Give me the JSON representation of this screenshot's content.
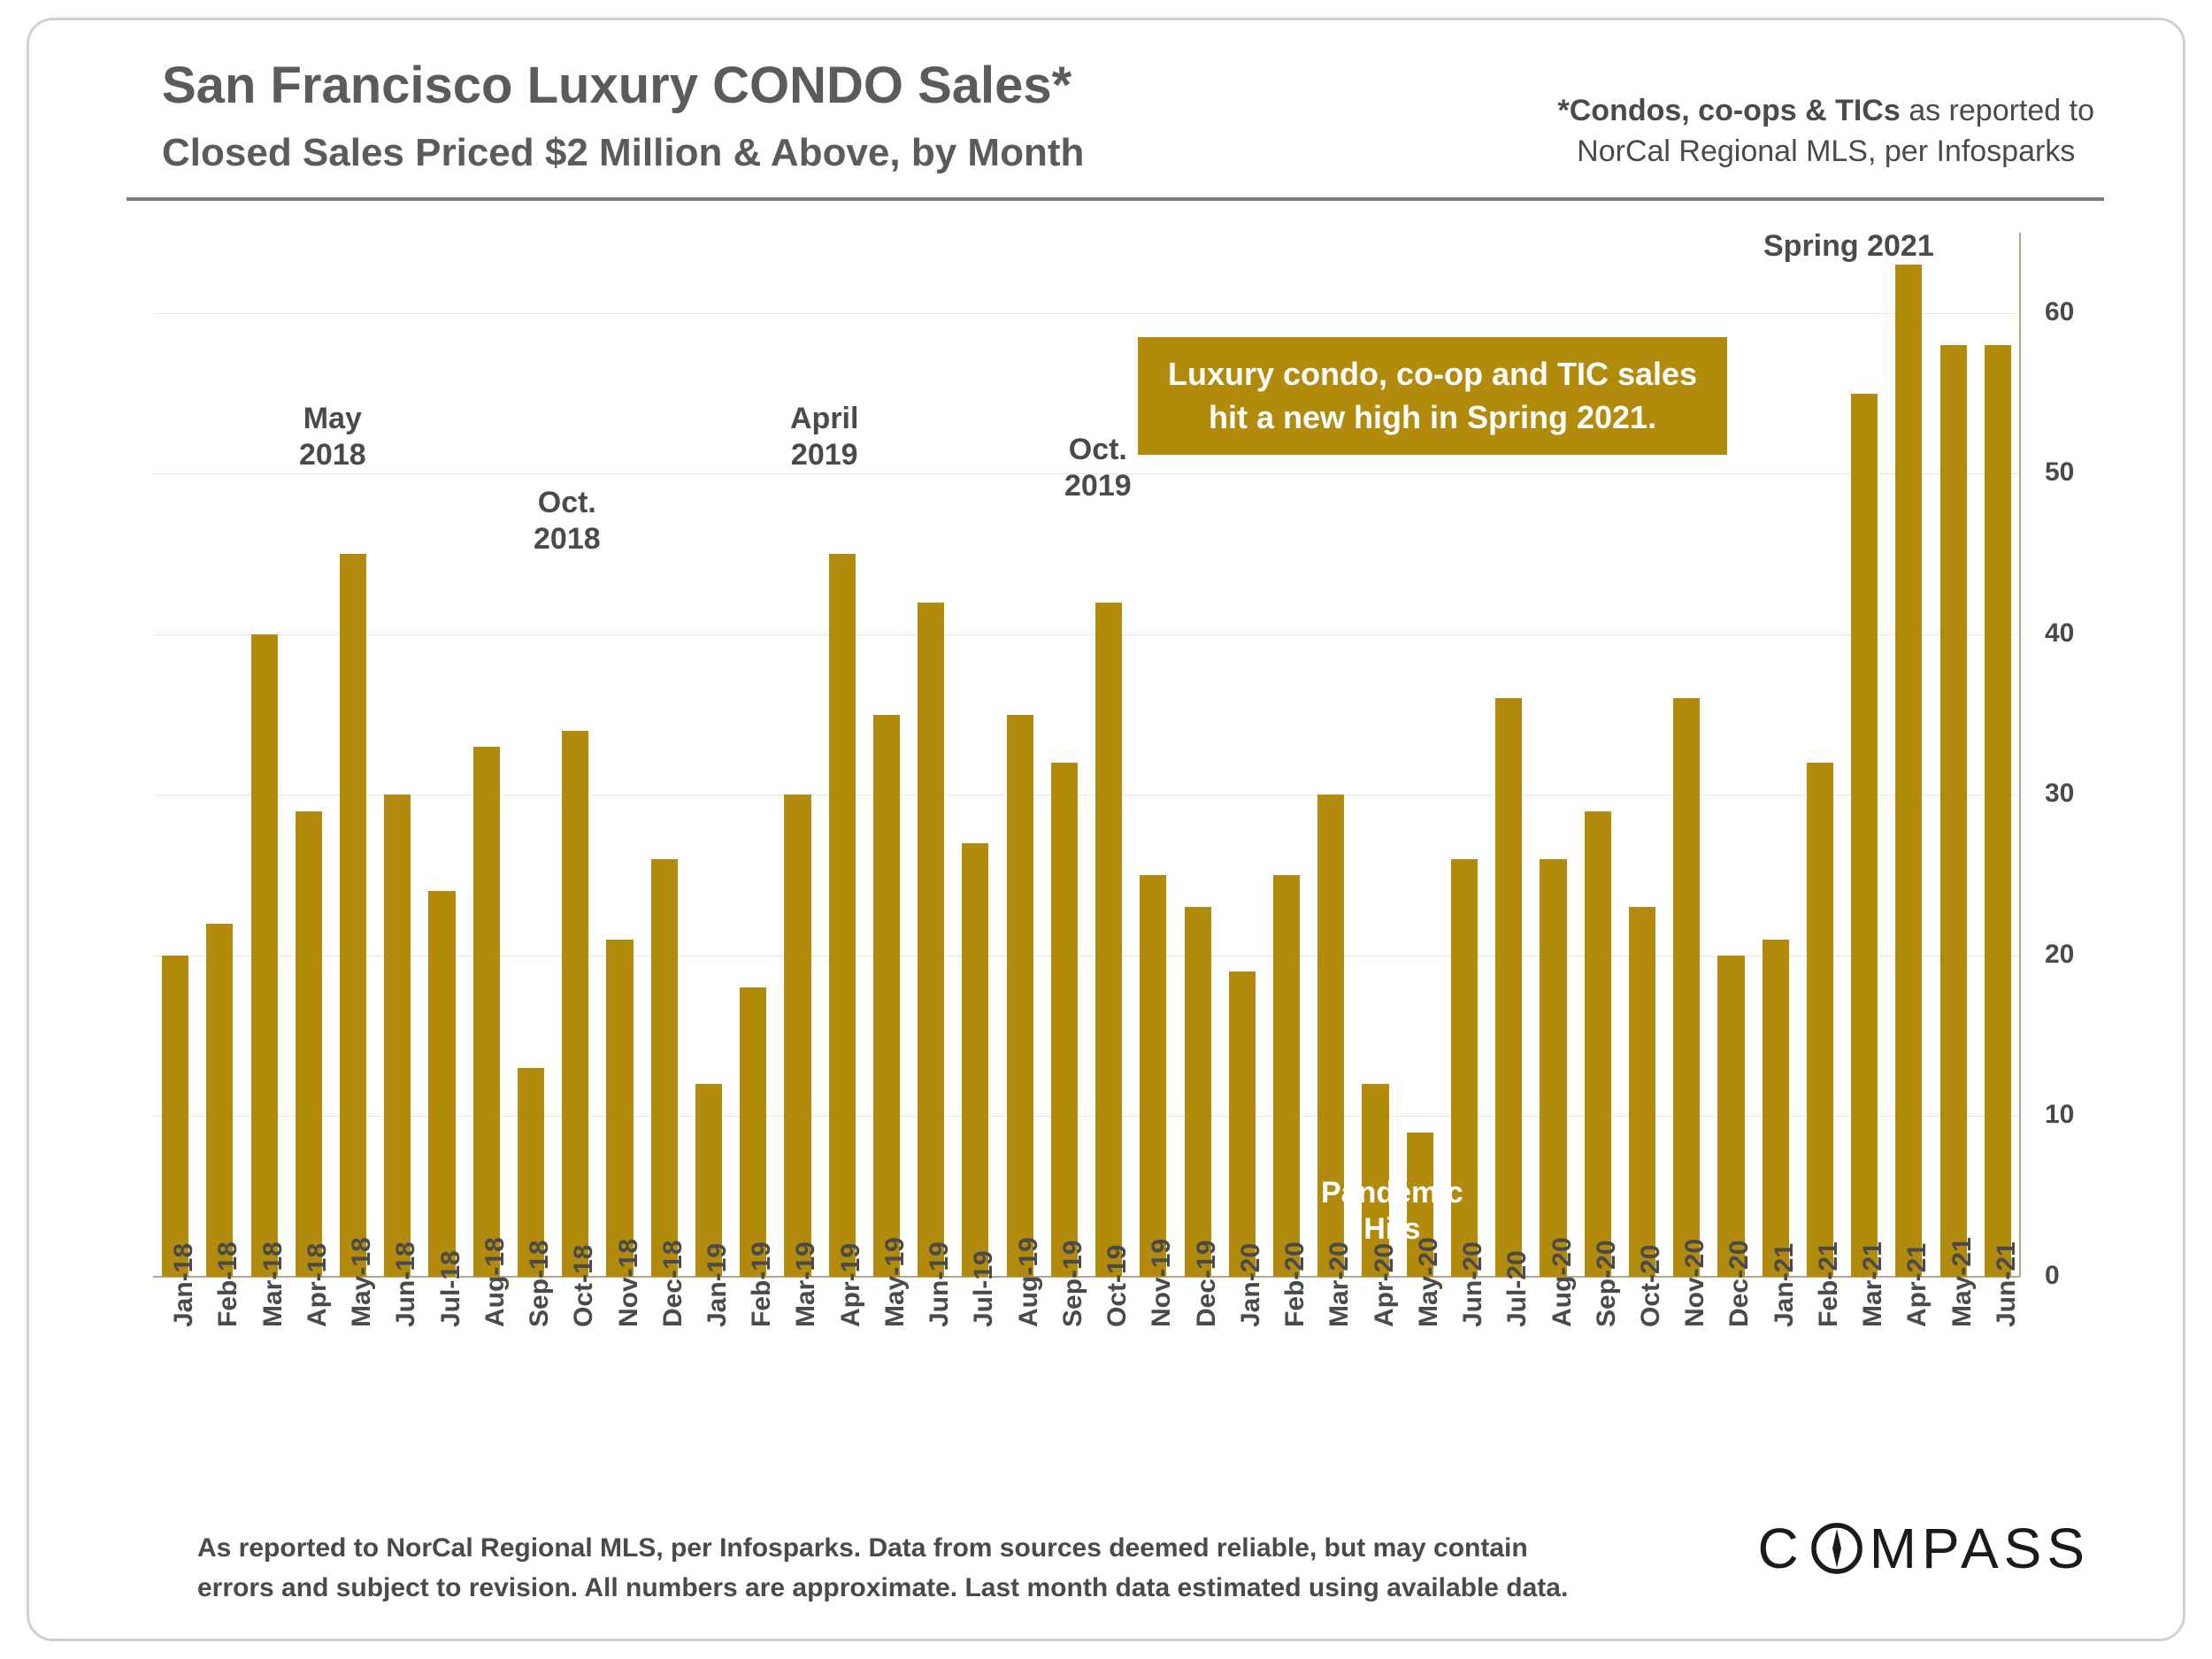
{
  "title": "San Francisco Luxury CONDO Sales*",
  "subtitle": "Closed Sales Priced $2 Million & Above, by Month",
  "note_right_bold": "*Condos, co-ops & TICs",
  "note_right_rest1": " as reported to",
  "note_right_line2": "NorCal Regional MLS, per Infosparks",
  "chart": {
    "type": "bar",
    "bar_color": "#b28b0c",
    "grid_color": "#f0e8d4",
    "axis_color": "#b0a98f",
    "background_color": "#ffffff",
    "ylim": [
      0,
      65
    ],
    "yticks": [
      0,
      10,
      20,
      30,
      40,
      50,
      60
    ],
    "bar_width_ratio": 0.6,
    "categories": [
      "Jan-18",
      "Feb-18",
      "Mar-18",
      "Apr-18",
      "May-18",
      "Jun-18",
      "Jul-18",
      "Aug-18",
      "Sep-18",
      "Oct-18",
      "Nov-18",
      "Dec-18",
      "Jan-19",
      "Feb-19",
      "Mar-19",
      "Apr-19",
      "May-19",
      "Jun-19",
      "Jul-19",
      "Aug-19",
      "Sep-19",
      "Oct-19",
      "Nov-19",
      "Dec-19",
      "Jan-20",
      "Feb-20",
      "Mar-20",
      "Apr-20",
      "May-20",
      "Jun-20",
      "Jul-20",
      "Aug-20",
      "Sep-20",
      "Oct-20",
      "Nov-20",
      "Dec-20",
      "Jan-21",
      "Feb-21",
      "Mar-21",
      "Apr-21",
      "May-21",
      "Jun-21"
    ],
    "values": [
      20,
      22,
      40,
      29,
      45,
      30,
      24,
      33,
      13,
      34,
      21,
      26,
      12,
      18,
      30,
      45,
      35,
      42,
      27,
      35,
      32,
      42,
      25,
      23,
      19,
      25,
      30,
      12,
      9,
      26,
      36,
      26,
      29,
      23,
      36,
      20,
      21,
      32,
      55,
      63,
      58,
      58
    ]
  },
  "callouts": {
    "may2018": "May\n2018",
    "oct2018": "Oct.\n2018",
    "apr2019": "April\n2019",
    "oct2019": "Oct.\n2019",
    "spring2021": "Spring 2021",
    "pandemic": "Pandemic\nHits",
    "box_line1": "Luxury condo, co-op and TIC sales",
    "box_line2": "hit a new high in Spring 2021."
  },
  "disclaimer": "As reported to NorCal Regional MLS, per Infosparks. Data from sources deemed reliable, but may contain errors and subject to revision. All numbers are approximate. Last month data estimated using available data.",
  "logo_text_before": "C",
  "logo_text_after": "MPASS"
}
